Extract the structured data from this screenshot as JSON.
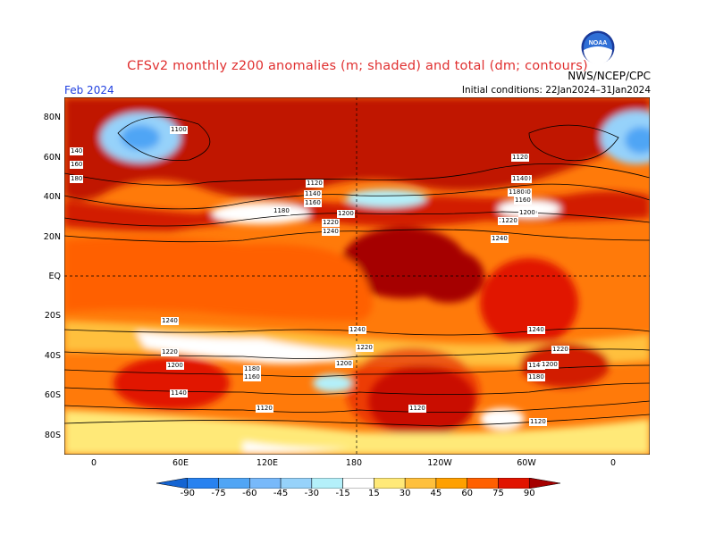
{
  "header": {
    "title": "CFSv2 monthly z200 anomalies (m; shaded) and total (dm; contours)",
    "agency": "NWS/NCEP/CPC",
    "logo_text": "NOAA",
    "date_label": "Feb 2024",
    "initial_conditions": "Initial conditions: 22Jan2024–31Jan2024"
  },
  "axes": {
    "lat_labels": [
      "80N",
      "60N",
      "40N",
      "20N",
      "EQ",
      "20S",
      "40S",
      "60S",
      "80S"
    ],
    "lon_labels": [
      "0",
      "60E",
      "120E",
      "180",
      "120W",
      "60W",
      "0"
    ]
  },
  "contour_labels": [
    "1100",
    "1120",
    "1140",
    "1160",
    "1180",
    "1200",
    "1220",
    "1240",
    "1140",
    "1180",
    "1160",
    "1200",
    "1220",
    "1240",
    "1120",
    "1140",
    "1180",
    "1200",
    "1220",
    "1240",
    "1240",
    "1220",
    "1200",
    "1180",
    "1160",
    "1140",
    "1120",
    "1240",
    "1220",
    "1200",
    "1180",
    "1140",
    "1120",
    "1240",
    "1220",
    "1200",
    "1140",
    "1120",
    "140",
    "160",
    "180"
  ],
  "colorbar": {
    "tick_labels": [
      "-90",
      "-75",
      "-60",
      "-45",
      "-30",
      "-15",
      "15",
      "30",
      "45",
      "60",
      "75",
      "90"
    ],
    "colors": [
      "#1464d2",
      "#2882f0",
      "#50a5f5",
      "#78b9fa",
      "#96d2fa",
      "#b4f0fa",
      "#ffffff",
      "#ffe978",
      "#ffc03c",
      "#ffa000",
      "#ff6000",
      "#e11400",
      "#a50000"
    ]
  }
}
